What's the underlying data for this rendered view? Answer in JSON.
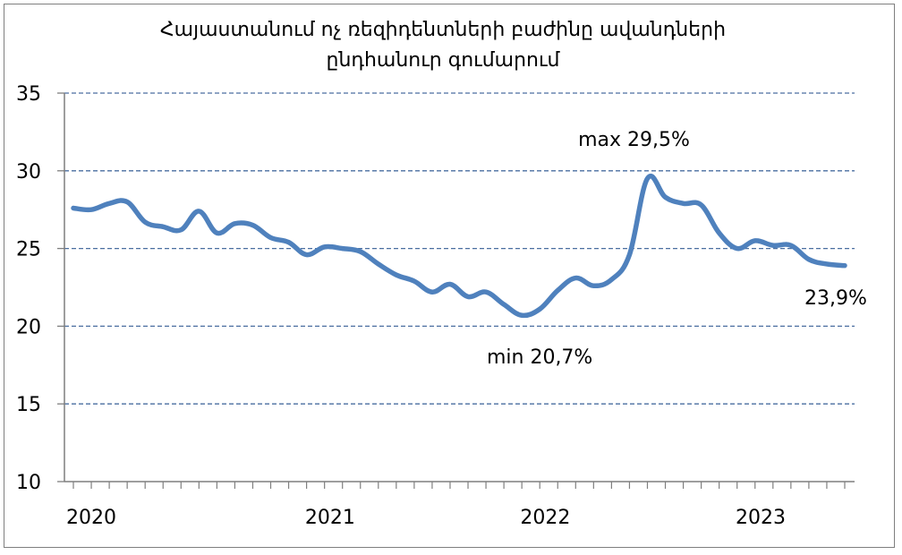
{
  "chart_data": {
    "type": "line",
    "title_lines": [
      "Հայաստանում ոչ ռեզիդենտների բաժինը ավանդների",
      "ընդհանուր գումարում"
    ],
    "xlabel": "",
    "ylabel": "",
    "ylim": [
      10,
      35
    ],
    "y_ticks": [
      "35",
      "30",
      "25",
      "20",
      "15",
      "10"
    ],
    "x_ticks": [
      "2020",
      "2021",
      "2022",
      "2023"
    ],
    "grid": true,
    "grid_style": "dashed",
    "legend": "none",
    "colors": {
      "line": "#4f81bd",
      "grid": "#4a6ea0"
    },
    "series": [
      {
        "values": [
          27.6,
          27.5,
          27.9,
          28.0,
          26.7,
          26.4,
          26.2,
          27.4,
          26.0,
          26.6,
          26.5,
          25.7,
          25.4,
          24.6,
          25.1,
          25.0,
          24.8,
          24.0,
          23.3,
          22.9,
          22.2,
          22.7,
          21.9,
          22.2,
          21.4,
          20.7,
          21.1,
          22.3,
          23.1,
          22.6,
          23.0,
          24.6,
          29.5,
          28.3,
          27.9,
          27.8,
          26.0,
          25.0,
          25.5,
          25.2,
          25.2,
          24.3,
          24.0,
          23.9
        ]
      }
    ],
    "annotations": [
      {
        "text": "max 29,5%",
        "x_index": 32
      },
      {
        "text": "min 20,7%",
        "x_index": 25
      },
      {
        "text": "23,9%",
        "x_index": 43
      }
    ]
  }
}
